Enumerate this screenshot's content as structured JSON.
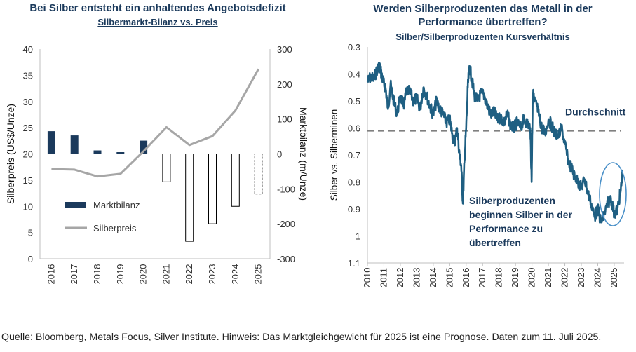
{
  "left_chart": {
    "title": "Bei Silber entsteht ein anhaltendes Angebotsdefizit",
    "subtitle": "Silbermarkt-Bilanz vs. Preis"
  },
  "right_chart": {
    "title_line1": "Werden Silberproduzenten das Metall in der",
    "title_line2": "Performance übertreffen?",
    "subtitle": "Silber/Silberproduzenten Kursverhältnis"
  },
  "footer": "Quelle: Bloomberg, Metals Focus, Silver Institute. Hinweis: Das Marktgleichgewicht für 2025 ist eine Prognose. Daten zum 11. Juli 2025.",
  "colors": {
    "navy": "#1b3a5c",
    "teal": "#1f5f82",
    "grey": "#a6a6a6",
    "ellipse": "#4a90c8"
  },
  "chart_data": [
    {
      "type": "bar+line",
      "title": "Bei Silber entsteht ein anhaltendes Angebotsdefizit",
      "subtitle": "Silbermarkt-Bilanz vs. Preis",
      "categories": [
        "2016",
        "2017",
        "2018",
        "2019",
        "2020",
        "2021",
        "2022",
        "2023",
        "2024",
        "2025"
      ],
      "series": [
        {
          "name": "Marktbilanz",
          "axis": "right",
          "type": "bar",
          "values": [
            65,
            53,
            10,
            5,
            38,
            -80,
            -250,
            -200,
            -150,
            -115
          ],
          "forecast_last": true
        },
        {
          "name": "Silberpreis",
          "axis": "left",
          "type": "line",
          "values": [
            17.1,
            17.0,
            15.7,
            16.2,
            20.5,
            25.1,
            21.7,
            23.4,
            28.3,
            36.2
          ]
        }
      ],
      "ylabel": "Silberpreis (US$/Unze)",
      "y2label": "Marktbilanz (m/Unze)",
      "ylim": [
        0,
        40
      ],
      "y2lim": [
        -300,
        300
      ],
      "yticks": [
        "0",
        "5",
        "10",
        "15",
        "20",
        "25",
        "30",
        "35",
        "40"
      ],
      "y2ticks": [
        "-300",
        "-200",
        "-100",
        "0",
        "100",
        "200",
        "300"
      ],
      "legend": [
        "Marktbilanz",
        "Silberpreis"
      ]
    },
    {
      "type": "line",
      "title": "Werden Silberproduzenten das Metall in der Performance übertreffen?",
      "subtitle": "Silber/Silberproduzenten Kursverhältnis",
      "ylabel": "Silber vs. Silberminen",
      "y_inverted": true,
      "ylim": [
        0.3,
        1.1
      ],
      "xlim": [
        2010,
        2025.6
      ],
      "yticks": [
        "0.3",
        "0.4",
        "0.5",
        "0.6",
        "0.7",
        "0.8",
        "0.9",
        "1",
        "1.1"
      ],
      "xticks": [
        "2010",
        "2011",
        "2012",
        "2013",
        "2014",
        "2015",
        "2016",
        "2017",
        "2018",
        "2019",
        "2020",
        "2021",
        "2022",
        "2023",
        "2024",
        "2025"
      ],
      "average": 0.61,
      "average_label": "Durchschnitt",
      "annotation": [
        "Silberproduzenten",
        "beginnen Silber in der",
        "Performance zu",
        "übertreffen"
      ],
      "x": [
        2010.0,
        2010.2,
        2010.4,
        2010.6,
        2010.75,
        2010.85,
        2010.95,
        2011.1,
        2011.25,
        2011.4,
        2011.6,
        2011.8,
        2012.0,
        2012.2,
        2012.4,
        2012.6,
        2012.8,
        2013.0,
        2013.2,
        2013.4,
        2013.6,
        2013.8,
        2014.0,
        2014.2,
        2014.4,
        2014.6,
        2014.8,
        2015.0,
        2015.15,
        2015.3,
        2015.45,
        2015.6,
        2015.7,
        2015.8,
        2015.9,
        2016.0,
        2016.1,
        2016.2,
        2016.35,
        2016.5,
        2016.7,
        2016.9,
        2017.1,
        2017.3,
        2017.5,
        2017.7,
        2017.9,
        2018.1,
        2018.3,
        2018.5,
        2018.7,
        2018.9,
        2019.1,
        2019.3,
        2019.5,
        2019.7,
        2019.9,
        2019.98,
        2020.05,
        2020.15,
        2020.3,
        2020.45,
        2020.6,
        2020.8,
        2021.0,
        2021.2,
        2021.4,
        2021.6,
        2021.8,
        2022.0,
        2022.2,
        2022.4,
        2022.6,
        2022.8,
        2023.0,
        2023.2,
        2023.4,
        2023.6,
        2023.8,
        2024.0,
        2024.2,
        2024.4,
        2024.6,
        2024.8,
        2025.0,
        2025.2,
        2025.4,
        2025.5
      ],
      "values": [
        0.43,
        0.41,
        0.42,
        0.38,
        0.37,
        0.4,
        0.43,
        0.45,
        0.53,
        0.44,
        0.5,
        0.55,
        0.48,
        0.52,
        0.46,
        0.47,
        0.5,
        0.49,
        0.53,
        0.45,
        0.48,
        0.52,
        0.55,
        0.5,
        0.53,
        0.55,
        0.58,
        0.57,
        0.62,
        0.66,
        0.6,
        0.7,
        0.74,
        0.88,
        0.72,
        0.6,
        0.45,
        0.37,
        0.42,
        0.48,
        0.5,
        0.47,
        0.48,
        0.52,
        0.55,
        0.54,
        0.57,
        0.56,
        0.58,
        0.55,
        0.59,
        0.6,
        0.58,
        0.6,
        0.57,
        0.58,
        0.6,
        0.8,
        0.47,
        0.5,
        0.52,
        0.56,
        0.6,
        0.62,
        0.57,
        0.59,
        0.62,
        0.63,
        0.6,
        0.66,
        0.72,
        0.75,
        0.78,
        0.8,
        0.82,
        0.79,
        0.84,
        0.88,
        0.93,
        0.9,
        0.95,
        0.92,
        0.88,
        0.86,
        0.92,
        0.9,
        0.83,
        0.77
      ]
    }
  ]
}
